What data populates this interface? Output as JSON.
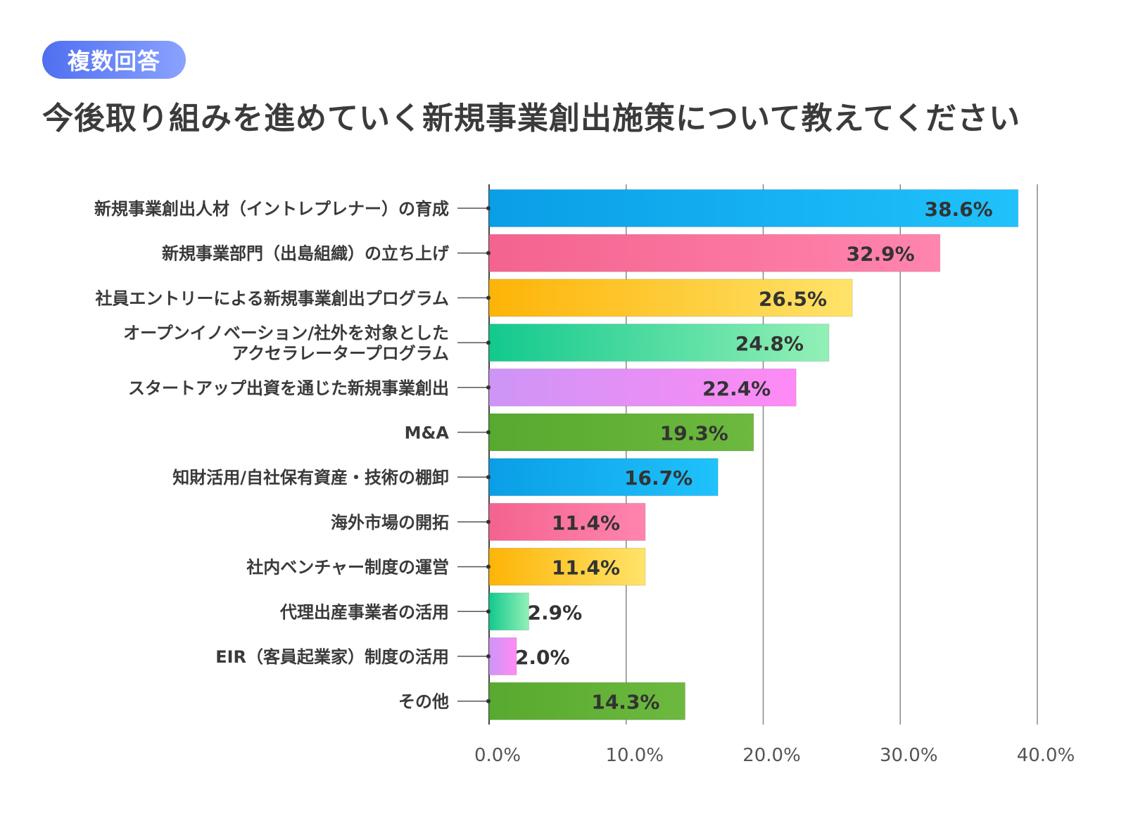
{
  "badge": {
    "label": "複数回答"
  },
  "title": "今後取り組みを進めていく新規事業創出施策について教えてください",
  "chart_data": {
    "type": "bar",
    "orientation": "horizontal",
    "title": "今後取り組みを進めていく新規事業創出施策について教えてください",
    "xlim": [
      0,
      40
    ],
    "ticks": [
      0,
      10,
      20,
      30,
      40
    ],
    "tick_labels": [
      "0.0%",
      "10.0%",
      "20.0%",
      "30.0%",
      "40.0%"
    ],
    "grid": true,
    "categories": [
      [
        "新規事業創出人材（イントレプレナー）の育成"
      ],
      [
        "新規事業部門（出島組織）の立ち上げ"
      ],
      [
        "社員エントリーによる新規事業創出プログラム"
      ],
      [
        "オープンイノベーション/社外を対象とした",
        "アクセラレータープログラム"
      ],
      [
        "スタートアップ出資を通じた新規事業創出"
      ],
      [
        "M&A"
      ],
      [
        "知財活用/自社保有資産・技術の棚卸"
      ],
      [
        "海外市場の開拓"
      ],
      [
        "社内ベンチャー制度の運営"
      ],
      [
        "代理出産事業者の活用"
      ],
      [
        "EIR（客員起業家）制度の活用"
      ],
      [
        "その他"
      ]
    ],
    "values": [
      38.6,
      32.9,
      26.5,
      24.8,
      22.4,
      19.3,
      16.7,
      11.4,
      11.4,
      2.9,
      2.0,
      14.3
    ],
    "value_labels": [
      "38.6%",
      "32.9%",
      "26.5%",
      "24.8%",
      "22.4%",
      "19.3%",
      "16.7%",
      "11.4%",
      "11.4%",
      "2.9%",
      "2.0%",
      "14.3%"
    ],
    "colors": [
      [
        "#0a9ee6",
        "#1fc2fb"
      ],
      [
        "#f4638f",
        "#ff85ae"
      ],
      [
        "#fdb407",
        "#ffe36a"
      ],
      [
        "#12c98e",
        "#93f0b6"
      ],
      [
        "#cd95f6",
        "#ff8af5"
      ],
      [
        "#58a92f",
        "#6db93f"
      ],
      [
        "#0a9ee6",
        "#1fc2fb"
      ],
      [
        "#f4638f",
        "#ff85ae"
      ],
      [
        "#fdb407",
        "#ffe36a"
      ],
      [
        "#12c98e",
        "#93f0b6"
      ],
      [
        "#cd95f6",
        "#ff8af5"
      ],
      [
        "#58a92f",
        "#6db93f"
      ]
    ]
  }
}
